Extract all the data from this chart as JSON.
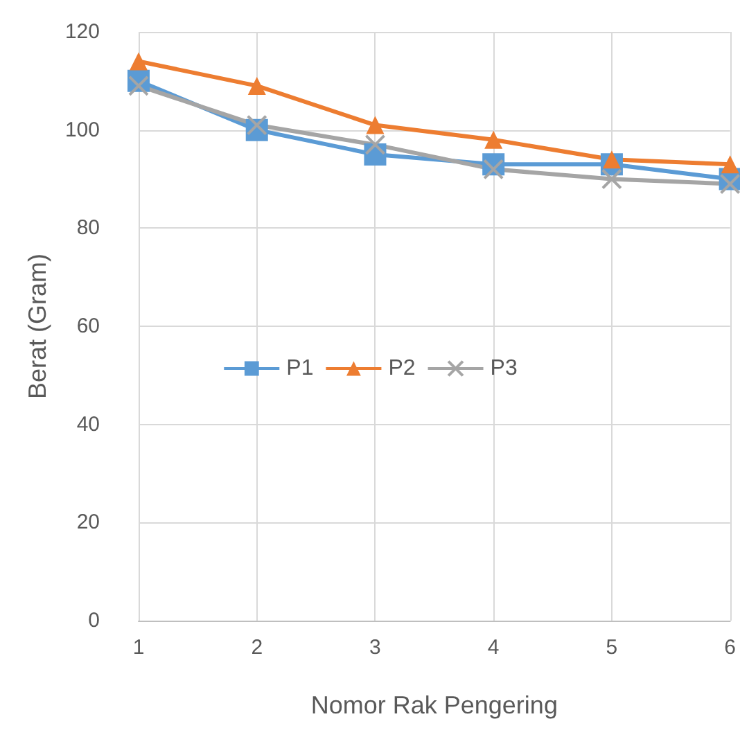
{
  "chart_data": {
    "type": "line",
    "xlabel": "Nomor Rak Pengering",
    "ylabel": "Berat (Gram)",
    "x": [
      1,
      2,
      3,
      4,
      5,
      6
    ],
    "xlim": [
      1,
      6
    ],
    "xticks": [
      1,
      2,
      3,
      4,
      5,
      6
    ],
    "ylim": [
      0,
      120
    ],
    "yticks": [
      0,
      20,
      40,
      60,
      80,
      100,
      120
    ],
    "grid": true,
    "legend": "center",
    "series": [
      {
        "name": "P1",
        "color": "#5b9bd5",
        "marker": "square",
        "values": [
          110,
          100,
          95,
          93,
          93,
          90
        ]
      },
      {
        "name": "P2",
        "color": "#ed7d31",
        "marker": "triangle",
        "values": [
          114,
          109,
          101,
          98,
          94,
          93
        ]
      },
      {
        "name": "P3",
        "color": "#a5a5a5",
        "marker": "cross",
        "values": [
          109,
          101,
          97,
          92,
          90,
          89
        ]
      }
    ]
  }
}
